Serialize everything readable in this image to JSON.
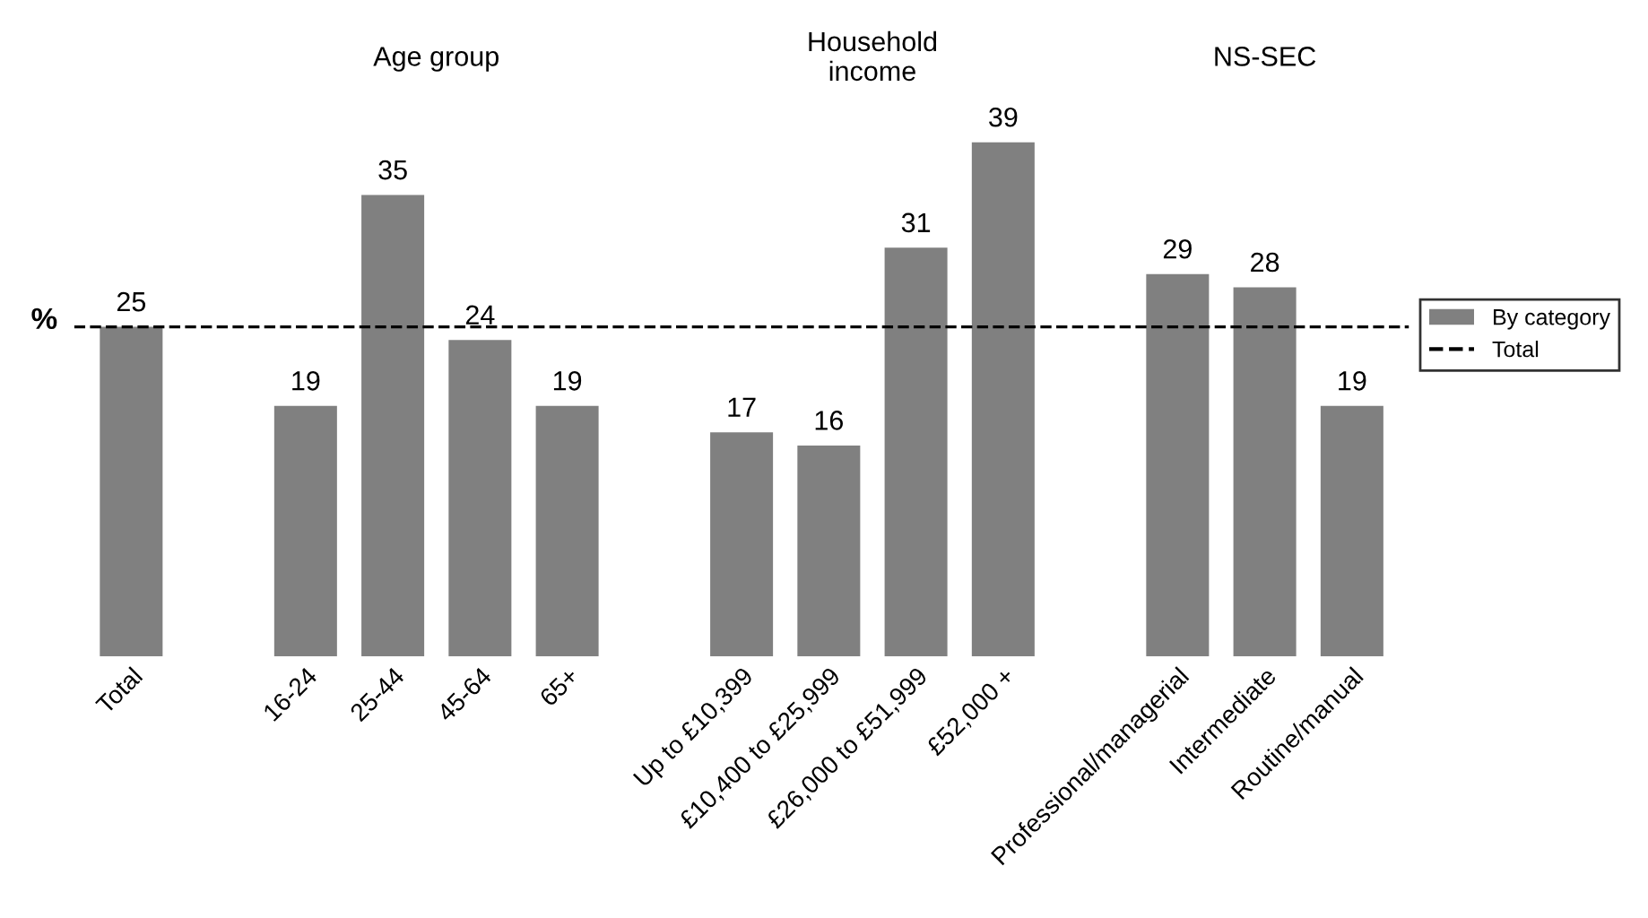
{
  "chart_data": {
    "type": "bar",
    "ylabel": "%",
    "categories": [
      "Total",
      null,
      "16-24",
      "25-44",
      "45-64",
      "65+",
      null,
      "Up to £10,399",
      "£10,400 to £25,999",
      "£26,000 to £51,999",
      "£52,000 +",
      null,
      "Professional/managerial",
      "Intermediate",
      "Routine/manual"
    ],
    "series": [
      {
        "name": "By category",
        "color": "#808080",
        "values": [
          25,
          null,
          19,
          35,
          24,
          19,
          null,
          17,
          16,
          31,
          39,
          null,
          29,
          28,
          19
        ]
      }
    ],
    "data_labels": true,
    "ref_lines": [
      {
        "axis": "y",
        "value": 25,
        "label": "Total",
        "color": "#000000",
        "line_style": "dashed"
      }
    ],
    "annotations": [
      "Age group",
      "Household\nincome",
      "NS-SEC"
    ],
    "legend": "right",
    "grid": false
  }
}
